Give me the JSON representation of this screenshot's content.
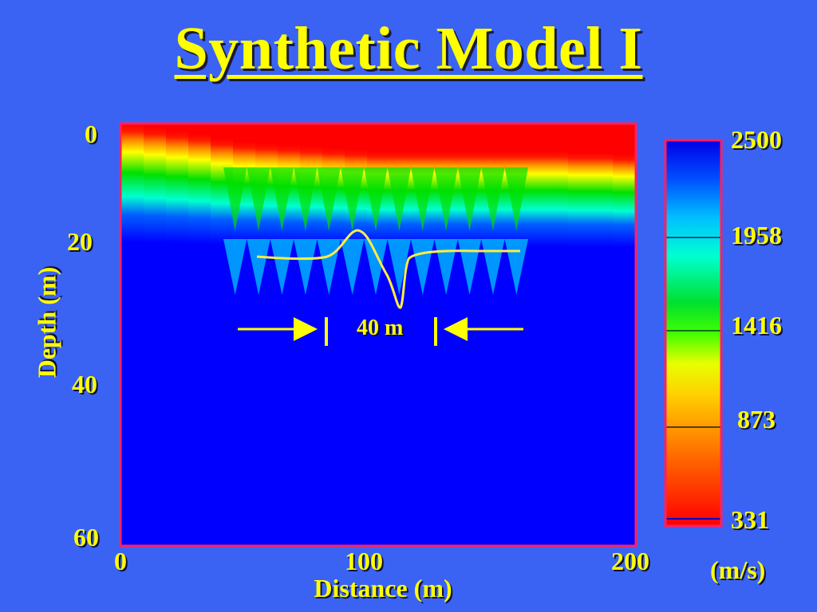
{
  "title": "Synthetic Model I",
  "chart_data": {
    "type": "heatmap",
    "title": "Synthetic Model I",
    "xlabel": "Distance (m)",
    "ylabel": "Depth (m)",
    "xlim": [
      0,
      200
    ],
    "ylim": [
      0,
      60
    ],
    "y_inverted": true,
    "x_ticks": [
      "0",
      "100",
      "200"
    ],
    "y_ticks": [
      "0",
      "20",
      "40",
      "60"
    ],
    "colorbar": {
      "unit_label": "(m/s)",
      "min": 331,
      "max": 2500,
      "ticks": [
        "2500",
        "1958",
        "1416",
        "873",
        "331"
      ],
      "colors_low_to_high": [
        "#ff0000",
        "#ff8000",
        "#ffff00",
        "#00e000",
        "#00ffe0",
        "#0050ff",
        "#0000ff"
      ]
    },
    "annotation": {
      "label": "40 m"
    }
  }
}
